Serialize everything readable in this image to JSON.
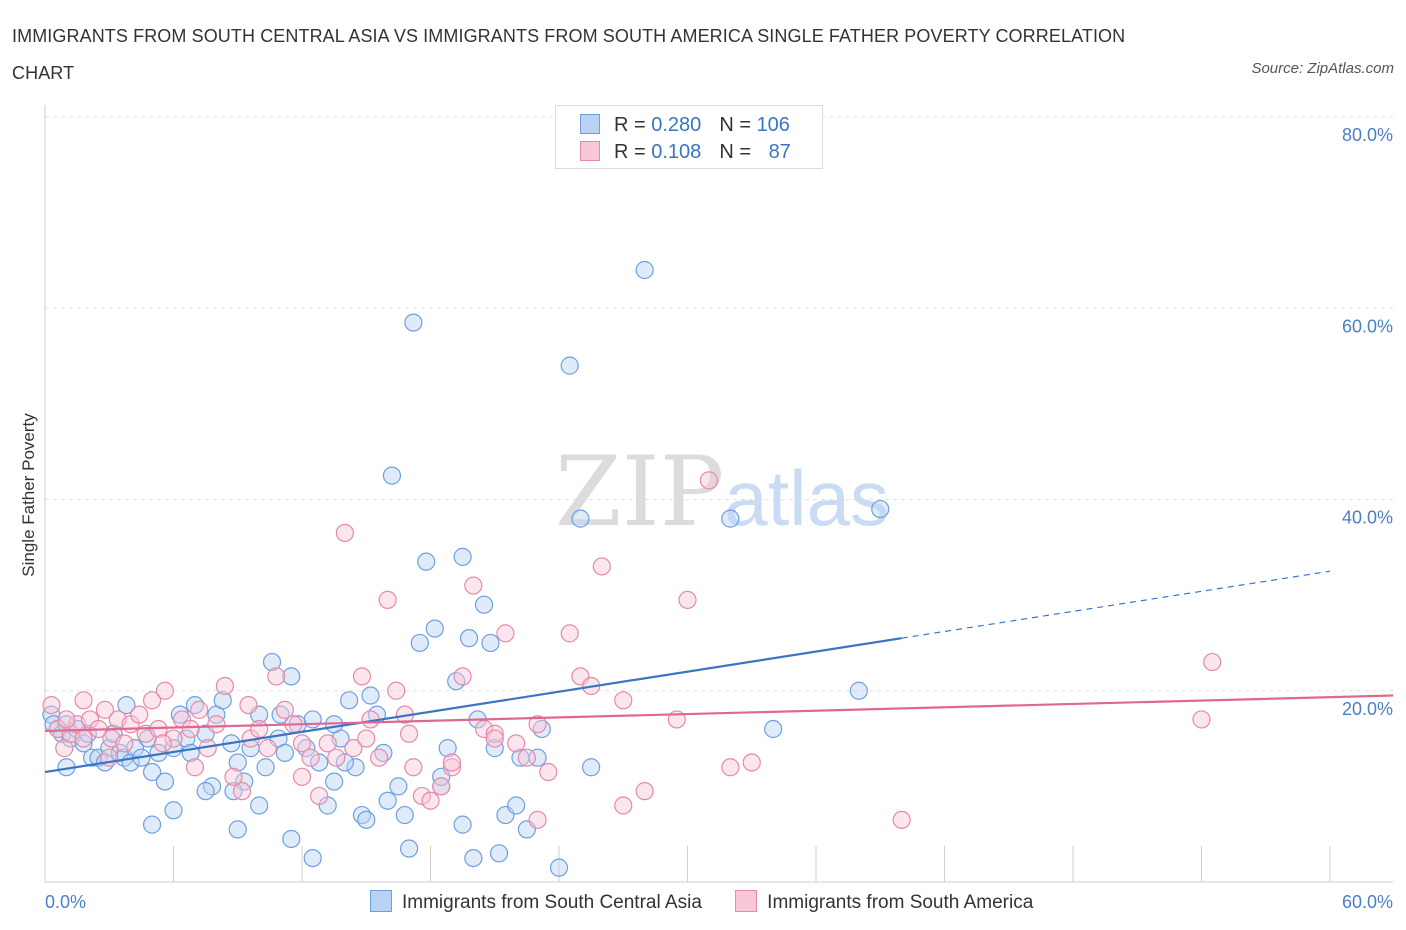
{
  "title": "IMMIGRANTS FROM SOUTH CENTRAL ASIA VS IMMIGRANTS FROM SOUTH AMERICA SINGLE FATHER POVERTY CORRELATION CHART",
  "source": "Source: ZipAtlas.com",
  "watermark": "ZIPatlas",
  "legend": {
    "rows": [
      {
        "r_label": "R = ",
        "r_value": "0.280",
        "n_label": "N = ",
        "n_value": "106",
        "color": "#6ea0e0",
        "fill": "#bad3f5"
      },
      {
        "r_label": "R = ",
        "r_value": "0.108",
        "n_label": "N = ",
        "n_value": "87",
        "color": "#e58aa8",
        "fill": "#f8c8d7"
      }
    ]
  },
  "chart_data": {
    "type": "scatter",
    "ylabel": "Single Father Poverty",
    "xlim": [
      0,
      60
    ],
    "ylim": [
      0,
      80
    ],
    "y_ticks": [
      "80.0%",
      "60.0%",
      "40.0%",
      "20.0%"
    ],
    "y_tick_values": [
      80,
      60,
      40,
      20
    ],
    "x_tick_labels": [
      "0.0%",
      "60.0%"
    ],
    "series": [
      {
        "name": "Immigrants from South Central Asia",
        "color": "#3a75c4",
        "point_color": "#6ea0e0",
        "trend": {
          "x0": 0,
          "y0": 11.5,
          "x1": 40,
          "y1": 25.5,
          "dash_x1": 60,
          "dash_y1": 32.5
        },
        "points": [
          [
            0.3,
            17.5
          ],
          [
            0.4,
            16.5
          ],
          [
            0.6,
            16
          ],
          [
            0.8,
            15.5
          ],
          [
            1.0,
            16.5
          ],
          [
            1.2,
            15.0
          ],
          [
            1.5,
            16.0
          ],
          [
            1.8,
            14.5
          ],
          [
            2.0,
            15.5
          ],
          [
            2.2,
            13.0
          ],
          [
            2.5,
            13.0
          ],
          [
            3.0,
            14.0
          ],
          [
            3.5,
            13.5
          ],
          [
            3.2,
            15.5
          ],
          [
            3.7,
            13.0
          ],
          [
            4.0,
            12.5
          ],
          [
            4.2,
            14.0
          ],
          [
            4.5,
            13.0
          ],
          [
            4.8,
            15.0
          ],
          [
            5.0,
            11.5
          ],
          [
            5.3,
            13.5
          ],
          [
            5.6,
            10.5
          ],
          [
            6.0,
            14.0
          ],
          [
            6.3,
            17.5
          ],
          [
            6.6,
            15.0
          ],
          [
            7.0,
            18.5
          ],
          [
            7.5,
            15.5
          ],
          [
            7.8,
            10.0
          ],
          [
            8.0,
            17.5
          ],
          [
            8.3,
            19.0
          ],
          [
            8.7,
            14.5
          ],
          [
            9.0,
            12.5
          ],
          [
            9.3,
            10.5
          ],
          [
            9.6,
            14.0
          ],
          [
            10.0,
            17.5
          ],
          [
            10.3,
            12.0
          ],
          [
            10.6,
            23.0
          ],
          [
            10.9,
            15.0
          ],
          [
            11.2,
            13.5
          ],
          [
            11.5,
            21.5
          ],
          [
            11.8,
            16.5
          ],
          [
            12.2,
            14.0
          ],
          [
            12.5,
            17.0
          ],
          [
            12.8,
            12.5
          ],
          [
            13.2,
            8.0
          ],
          [
            13.5,
            10.5
          ],
          [
            13.8,
            15.0
          ],
          [
            14.2,
            19.0
          ],
          [
            14.5,
            12.0
          ],
          [
            14.8,
            7.0
          ],
          [
            15.2,
            19.5
          ],
          [
            15.5,
            17.5
          ],
          [
            15.8,
            13.5
          ],
          [
            16.2,
            42.5
          ],
          [
            16.5,
            10.0
          ],
          [
            16.8,
            7.0
          ],
          [
            17.2,
            58.5
          ],
          [
            17.5,
            25.0
          ],
          [
            17.8,
            33.5
          ],
          [
            18.2,
            26.5
          ],
          [
            18.5,
            10.0
          ],
          [
            18.8,
            14.0
          ],
          [
            19.2,
            21.0
          ],
          [
            19.5,
            34.0
          ],
          [
            19.8,
            25.5
          ],
          [
            20.2,
            17.0
          ],
          [
            20.5,
            29.0
          ],
          [
            20.8,
            25.0
          ],
          [
            21.2,
            3.0
          ],
          [
            21.5,
            7.0
          ],
          [
            22.2,
            13.0
          ],
          [
            22.5,
            5.5
          ],
          [
            23.2,
            16.0
          ],
          [
            24.0,
            1.5
          ],
          [
            24.5,
            54.0
          ],
          [
            25.0,
            38.0
          ],
          [
            25.5,
            12.0
          ],
          [
            28.0,
            64.0
          ],
          [
            32.0,
            38.0
          ],
          [
            34.0,
            16.0
          ],
          [
            38.0,
            20.0
          ],
          [
            39.0,
            39.0
          ],
          [
            1.0,
            12.0
          ],
          [
            2.8,
            12.5
          ],
          [
            5.0,
            6.0
          ],
          [
            6.0,
            7.5
          ],
          [
            7.5,
            9.5
          ],
          [
            9.0,
            5.5
          ],
          [
            10.0,
            8.0
          ],
          [
            11.5,
            4.5
          ],
          [
            12.5,
            2.5
          ],
          [
            13.5,
            16.5
          ],
          [
            15.0,
            6.5
          ],
          [
            16.0,
            8.5
          ],
          [
            17.0,
            3.5
          ],
          [
            18.5,
            11.0
          ],
          [
            19.5,
            6.0
          ],
          [
            20.0,
            2.5
          ],
          [
            21.0,
            14.0
          ],
          [
            22.0,
            8.0
          ],
          [
            23.0,
            13.0
          ],
          [
            3.8,
            18.5
          ],
          [
            6.8,
            13.5
          ],
          [
            8.8,
            9.5
          ],
          [
            11.0,
            17.5
          ],
          [
            14.0,
            12.5
          ]
        ]
      },
      {
        "name": "Immigrants from South America",
        "color": "#e06890",
        "point_color": "#e58aa8",
        "trend": {
          "x0": 0,
          "y0": 15.8,
          "x1": 60,
          "y1": 19.5
        },
        "points": [
          [
            0.3,
            18.5
          ],
          [
            0.6,
            16.0
          ],
          [
            0.9,
            14.0
          ],
          [
            1.2,
            15.5
          ],
          [
            1.5,
            16.5
          ],
          [
            1.8,
            15.0
          ],
          [
            2.1,
            17.0
          ],
          [
            2.5,
            16.0
          ],
          [
            2.8,
            18.0
          ],
          [
            3.1,
            15.0
          ],
          [
            3.4,
            17.0
          ],
          [
            3.7,
            14.5
          ],
          [
            4.0,
            16.5
          ],
          [
            4.4,
            17.5
          ],
          [
            4.7,
            15.5
          ],
          [
            5.0,
            19.0
          ],
          [
            5.3,
            16.0
          ],
          [
            5.6,
            20.0
          ],
          [
            6.0,
            15.0
          ],
          [
            6.4,
            17.0
          ],
          [
            6.8,
            16.0
          ],
          [
            7.2,
            18.0
          ],
          [
            7.6,
            14.0
          ],
          [
            8.0,
            16.5
          ],
          [
            8.4,
            20.5
          ],
          [
            8.8,
            11.0
          ],
          [
            9.2,
            9.5
          ],
          [
            9.6,
            15.0
          ],
          [
            10.0,
            16.0
          ],
          [
            10.4,
            14.0
          ],
          [
            10.8,
            21.5
          ],
          [
            11.2,
            18.0
          ],
          [
            11.6,
            16.5
          ],
          [
            12.0,
            14.5
          ],
          [
            12.4,
            13.0
          ],
          [
            12.8,
            9.0
          ],
          [
            13.2,
            14.5
          ],
          [
            13.6,
            13.0
          ],
          [
            14.0,
            36.5
          ],
          [
            14.4,
            14.0
          ],
          [
            14.8,
            21.5
          ],
          [
            15.2,
            17.0
          ],
          [
            15.6,
            13.0
          ],
          [
            16.0,
            29.5
          ],
          [
            16.4,
            20.0
          ],
          [
            16.8,
            17.5
          ],
          [
            17.2,
            12.0
          ],
          [
            17.6,
            9.0
          ],
          [
            18.0,
            8.5
          ],
          [
            18.5,
            10.0
          ],
          [
            19.0,
            12.0
          ],
          [
            19.5,
            21.5
          ],
          [
            20.0,
            31.0
          ],
          [
            20.5,
            16.0
          ],
          [
            21.0,
            15.5
          ],
          [
            21.5,
            26.0
          ],
          [
            22.0,
            14.5
          ],
          [
            22.5,
            13.0
          ],
          [
            23.0,
            16.5
          ],
          [
            23.5,
            11.5
          ],
          [
            24.5,
            26.0
          ],
          [
            25.0,
            21.5
          ],
          [
            26.0,
            33.0
          ],
          [
            27.0,
            19.0
          ],
          [
            28.0,
            9.5
          ],
          [
            29.5,
            17.0
          ],
          [
            30.0,
            29.5
          ],
          [
            31.0,
            42.0
          ],
          [
            32.0,
            12.0
          ],
          [
            33.0,
            12.5
          ],
          [
            40.0,
            6.5
          ],
          [
            54.0,
            17.0
          ],
          [
            54.5,
            23.0
          ],
          [
            1.0,
            17.0
          ],
          [
            3.0,
            13.0
          ],
          [
            5.5,
            14.5
          ],
          [
            7.0,
            12.0
          ],
          [
            9.5,
            18.5
          ],
          [
            12.0,
            11.0
          ],
          [
            15.0,
            15.0
          ],
          [
            17.0,
            15.5
          ],
          [
            19.0,
            12.5
          ],
          [
            21.0,
            15.0
          ],
          [
            23.0,
            6.5
          ],
          [
            25.5,
            20.5
          ],
          [
            27.0,
            8.0
          ],
          [
            1.8,
            19.0
          ]
        ]
      }
    ]
  }
}
